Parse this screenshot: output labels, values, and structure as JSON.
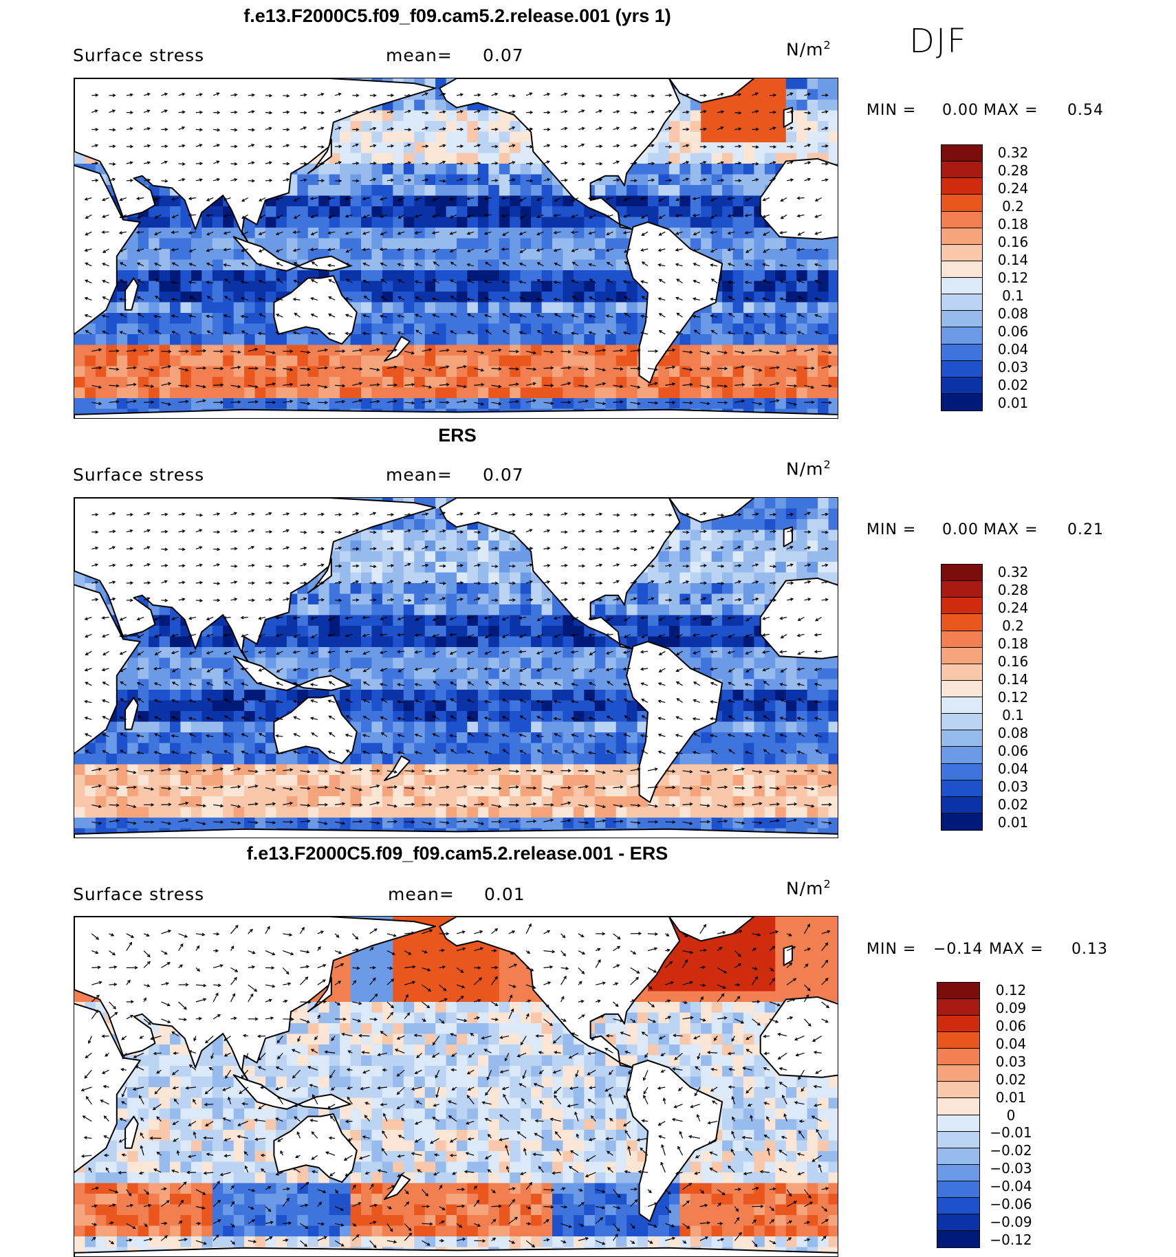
{
  "season": "DJF",
  "units_main": "N/m",
  "units_exp": "2",
  "panels": [
    {
      "title": "f.e13.F2000C5.f09_f09.cam5.2.release.001 (yrs 1)",
      "variable": "Surface stress",
      "mean_label": "mean=",
      "mean_value": "0.07",
      "min_label": "MIN =",
      "min_value": "0.00",
      "max_label": "MAX =",
      "max_value": "0.54",
      "field": "model",
      "colorbar": [
        "0.32",
        "0.28",
        "0.24",
        "0.2",
        "0.18",
        "0.16",
        "0.14",
        "0.12",
        "0.1",
        "0.08",
        "0.06",
        "0.04",
        "0.03",
        "0.02",
        "0.01"
      ]
    },
    {
      "title": "ERS",
      "variable": "Surface stress",
      "mean_label": "mean=",
      "mean_value": "0.07",
      "min_label": "MIN =",
      "min_value": "0.00",
      "max_label": "MAX =",
      "max_value": "0.21",
      "field": "obs",
      "colorbar": [
        "0.32",
        "0.28",
        "0.24",
        "0.2",
        "0.18",
        "0.16",
        "0.14",
        "0.12",
        "0.1",
        "0.08",
        "0.06",
        "0.04",
        "0.03",
        "0.02",
        "0.01"
      ]
    },
    {
      "title": "f.e13.F2000C5.f09_f09.cam5.2.release.001 - ERS",
      "variable": "Surface stress",
      "mean_label": "mean=",
      "mean_value": "0.01",
      "min_label": "MIN =",
      "min_value": "−0.14",
      "max_label": "MAX =",
      "max_value": "0.13",
      "field": "diff",
      "colorbar": [
        "0.12",
        "0.09",
        "0.06",
        "0.04",
        "0.03",
        "0.02",
        "0.01",
        "0",
        "−0.01",
        "−0.02",
        "−0.03",
        "−0.04",
        "−0.06",
        "−0.09",
        "−0.12"
      ]
    }
  ],
  "colors": {
    "scale16": [
      "#7b0d0d",
      "#a81a12",
      "#cf2c0e",
      "#e9571e",
      "#f27f4f",
      "#f6a47c",
      "#f9c7a9",
      "#fbe6d6",
      "#dbe9f8",
      "#bcd4f3",
      "#98bbee",
      "#6b9be6",
      "#3f74dc",
      "#1d52cc",
      "#0a33a8",
      "#001a7a"
    ],
    "land": "#ffffff",
    "coast": "#000000"
  }
}
